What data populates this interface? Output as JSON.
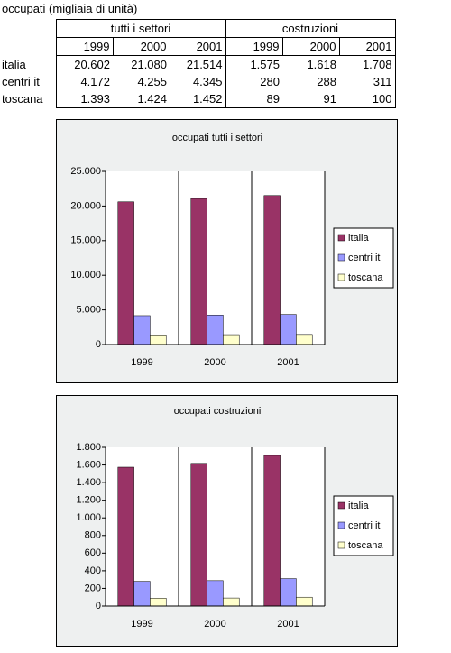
{
  "table": {
    "title": "occupati (migliaia di unità)",
    "groups": [
      "tutti i settori",
      "costruzioni"
    ],
    "years": [
      "1999",
      "2000",
      "2001",
      "1999",
      "2000",
      "2001"
    ],
    "rows": [
      {
        "label": "italia",
        "values": [
          "20.602",
          "21.080",
          "21.514",
          "1.575",
          "1.618",
          "1.708"
        ]
      },
      {
        "label": "centri it",
        "values": [
          "4.172",
          "4.255",
          "4.345",
          "280",
          "288",
          "311"
        ]
      },
      {
        "label": "toscana",
        "values": [
          "1.393",
          "1.424",
          "1.452",
          "89",
          "91",
          "100"
        ]
      }
    ]
  },
  "chart_data": [
    {
      "type": "bar",
      "title": "occupati tutti i settori",
      "categories": [
        "1999",
        "2000",
        "2001"
      ],
      "series": [
        {
          "name": "italia",
          "color": "#993366",
          "values": [
            20602,
            21080,
            21514
          ]
        },
        {
          "name": "centri it",
          "color": "#9999ff",
          "values": [
            4172,
            4255,
            4345
          ]
        },
        {
          "name": "toscana",
          "color": "#ffffcc",
          "values": [
            1393,
            1424,
            1452
          ]
        }
      ],
      "ylim": [
        0,
        25000
      ],
      "yticks": [
        0,
        {
          "value": 5000,
          "label": "5.000"
        },
        {
          "value": 10000,
          "label": "10.000"
        },
        {
          "value": 15000,
          "label": "15.000"
        },
        {
          "value": 20000,
          "label": "20.000"
        },
        {
          "value": 25000,
          "label": "25.000"
        }
      ],
      "legend": "right"
    },
    {
      "type": "bar",
      "title": "occupati costruzioni",
      "categories": [
        "1999",
        "2000",
        "2001"
      ],
      "series": [
        {
          "name": "italia",
          "color": "#993366",
          "values": [
            1575,
            1618,
            1708
          ]
        },
        {
          "name": "centri it",
          "color": "#9999ff",
          "values": [
            280,
            288,
            311
          ]
        },
        {
          "name": "toscana",
          "color": "#ffffcc",
          "values": [
            89,
            91,
            100
          ]
        }
      ],
      "ylim": [
        0,
        1800
      ],
      "yticks": [
        0,
        200,
        400,
        600,
        800,
        {
          "value": 1000,
          "label": "1.000"
        },
        {
          "value": 1200,
          "label": "1.200"
        },
        {
          "value": 1400,
          "label": "1.400"
        },
        {
          "value": 1600,
          "label": "1.600"
        },
        {
          "value": 1800,
          "label": "1.800"
        }
      ],
      "legend": "right"
    }
  ]
}
